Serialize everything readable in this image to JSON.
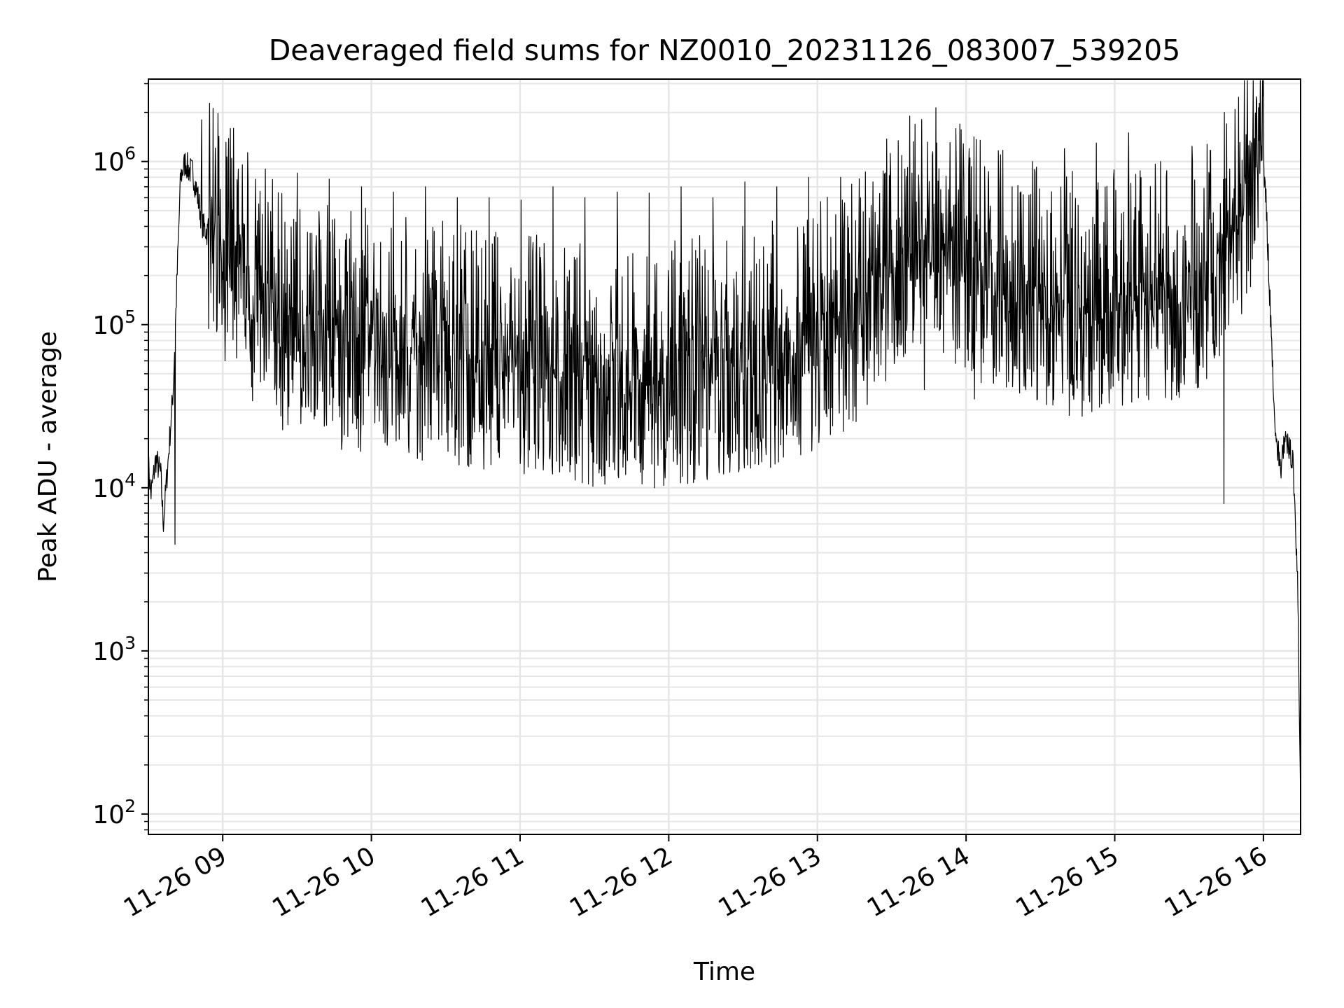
{
  "chart_data": {
    "type": "line",
    "title": "Deaveraged field sums for NZ0010_20231126_083007_539205",
    "xlabel": "Time",
    "ylabel": "Peak ADU - average",
    "x_axis": {
      "kind": "datetime",
      "range": [
        "2023-11-26 08:30",
        "2023-11-26 16:15"
      ],
      "ticks": [
        {
          "value": "2023-11-26 09:00",
          "label": "11-26 09"
        },
        {
          "value": "2023-11-26 10:00",
          "label": "11-26 10"
        },
        {
          "value": "2023-11-26 11:00",
          "label": "11-26 11"
        },
        {
          "value": "2023-11-26 12:00",
          "label": "11-26 12"
        },
        {
          "value": "2023-11-26 13:00",
          "label": "11-26 13"
        },
        {
          "value": "2023-11-26 14:00",
          "label": "11-26 14"
        },
        {
          "value": "2023-11-26 15:00",
          "label": "11-26 15"
        },
        {
          "value": "2023-11-26 16:00",
          "label": "11-26 16"
        }
      ],
      "tick_label_rotation": 30
    },
    "y_axis": {
      "scale": "log",
      "range": [
        75,
        3200000
      ],
      "ticks": [
        {
          "value": 100,
          "base": "10",
          "exp": "2"
        },
        {
          "value": 1000,
          "base": "10",
          "exp": "3"
        },
        {
          "value": 10000,
          "base": "10",
          "exp": "4"
        },
        {
          "value": 100000,
          "base": "10",
          "exp": "5"
        },
        {
          "value": 1000000,
          "base": "10",
          "exp": "6"
        }
      ]
    },
    "grid": "major and minor",
    "colors": {
      "line": "#000000",
      "grid": "#e6e6e6",
      "axes": "#000000",
      "background": "#ffffff"
    },
    "series": [
      {
        "x": [
          "2023-11-26 08:30",
          "2023-11-26 08:31",
          "2023-11-26 08:33",
          "2023-11-26 08:35",
          "2023-11-26 08:36",
          "2023-11-26 08:38",
          "2023-11-26 08:40",
          "2023-11-26 08:42",
          "2023-11-26 08:43",
          "2023-11-26 08:45",
          "2023-11-26 08:46",
          "2023-11-26 08:48",
          "2023-11-26 08:50",
          "2023-11-26 08:52",
          "2023-11-26 08:55",
          "2023-11-26 09:00",
          "2023-11-26 09:10",
          "2023-11-26 09:20",
          "2023-11-26 09:30",
          "2023-11-26 09:45",
          "2023-11-26 10:00",
          "2023-11-26 10:15",
          "2023-11-26 10:30",
          "2023-11-26 10:45",
          "2023-11-26 11:00",
          "2023-11-26 11:15",
          "2023-11-26 11:30",
          "2023-11-26 11:45",
          "2023-11-26 12:00",
          "2023-11-26 12:15",
          "2023-11-26 12:30",
          "2023-11-26 12:45",
          "2023-11-26 13:00",
          "2023-11-26 13:15",
          "2023-11-26 13:30",
          "2023-11-26 13:45",
          "2023-11-26 14:00",
          "2023-11-26 14:15",
          "2023-11-26 14:30",
          "2023-11-26 14:45",
          "2023-11-26 15:00",
          "2023-11-26 15:15",
          "2023-11-26 15:30",
          "2023-11-26 15:40",
          "2023-11-26 15:45",
          "2023-11-26 15:50",
          "2023-11-26 15:52",
          "2023-11-26 15:55",
          "2023-11-26 15:57",
          "2023-11-26 15:58",
          "2023-11-26 16:00",
          "2023-11-26 16:01",
          "2023-11-26 16:03",
          "2023-11-26 16:05",
          "2023-11-26 16:07",
          "2023-11-26 16:08",
          "2023-11-26 16:10",
          "2023-11-26 16:12",
          "2023-11-26 16:14",
          "2023-11-26 16:15"
        ],
        "y": [
          14000,
          9000,
          15000,
          12000,
          6000,
          15000,
          40000,
          300000,
          800000,
          1000000,
          900000,
          850000,
          600000,
          400000,
          350000,
          250000,
          150000,
          100000,
          80000,
          70000,
          65000,
          60000,
          55000,
          50000,
          50000,
          45000,
          40000,
          38000,
          40000,
          45000,
          50000,
          55000,
          70000,
          100000,
          200000,
          300000,
          200000,
          150000,
          120000,
          110000,
          120000,
          130000,
          150000,
          200000,
          300000,
          400000,
          500000,
          700000,
          900000,
          1200000,
          900000,
          600000,
          100000,
          20000,
          13000,
          18000,
          18000,
          15000,
          2000,
          100
        ],
        "spikes_high": [
          1800000,
          1600000,
          900000,
          850000,
          780000,
          700000,
          650000,
          700000,
          600000,
          600000,
          580000,
          700000,
          600000,
          650000,
          640000,
          700000,
          600000,
          750000,
          700000,
          800000,
          800000,
          750000,
          900000,
          1300000,
          900000,
          1100000,
          1000000,
          1200000,
          1300000,
          1500000,
          1000000,
          1000000,
          2000000
        ],
        "spikes_low": [
          4500,
          60000,
          40000,
          30000,
          25000,
          24000,
          22000,
          20000,
          18000,
          17000,
          28000,
          25000,
          26000,
          30000,
          45000,
          40000,
          35000,
          42000,
          40000,
          50000,
          55000,
          8000
        ]
      }
    ]
  }
}
